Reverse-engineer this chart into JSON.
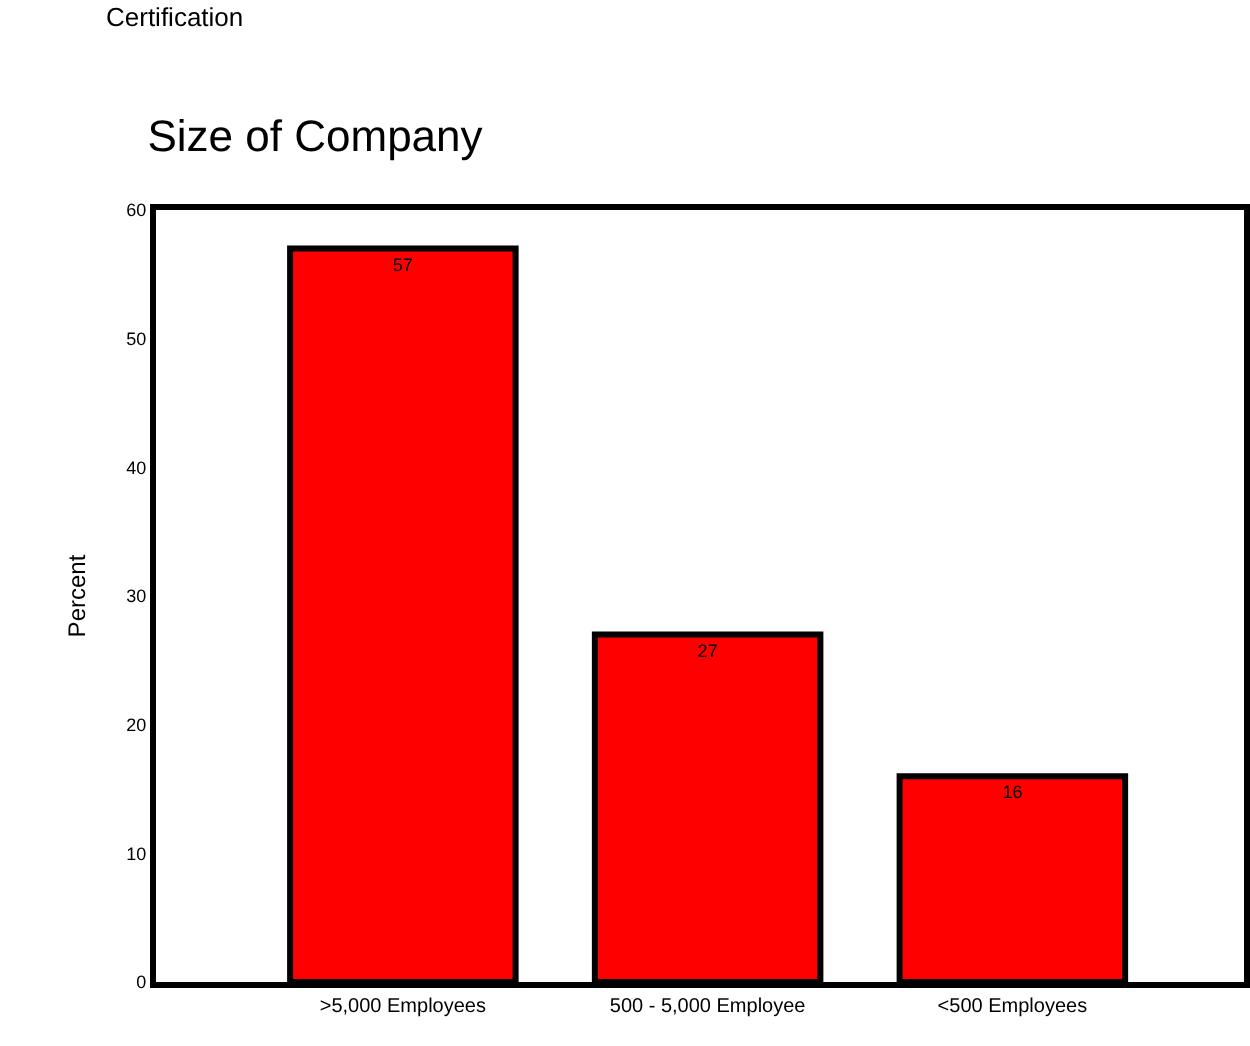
{
  "chart_data": {
    "type": "bar",
    "title": "Size of Company",
    "ylabel": "Percent",
    "annotations": [
      "Certification"
    ],
    "categories": [
      ">5,000 Employees",
      "500 - 5,000 Employee",
      "<500 Employees"
    ],
    "values": [
      57,
      27,
      16
    ],
    "color": "#ff0000",
    "ylim": [
      0,
      60
    ],
    "yticks": [
      0,
      10,
      20,
      30,
      40,
      50,
      60
    ],
    "data_labels": true
  }
}
